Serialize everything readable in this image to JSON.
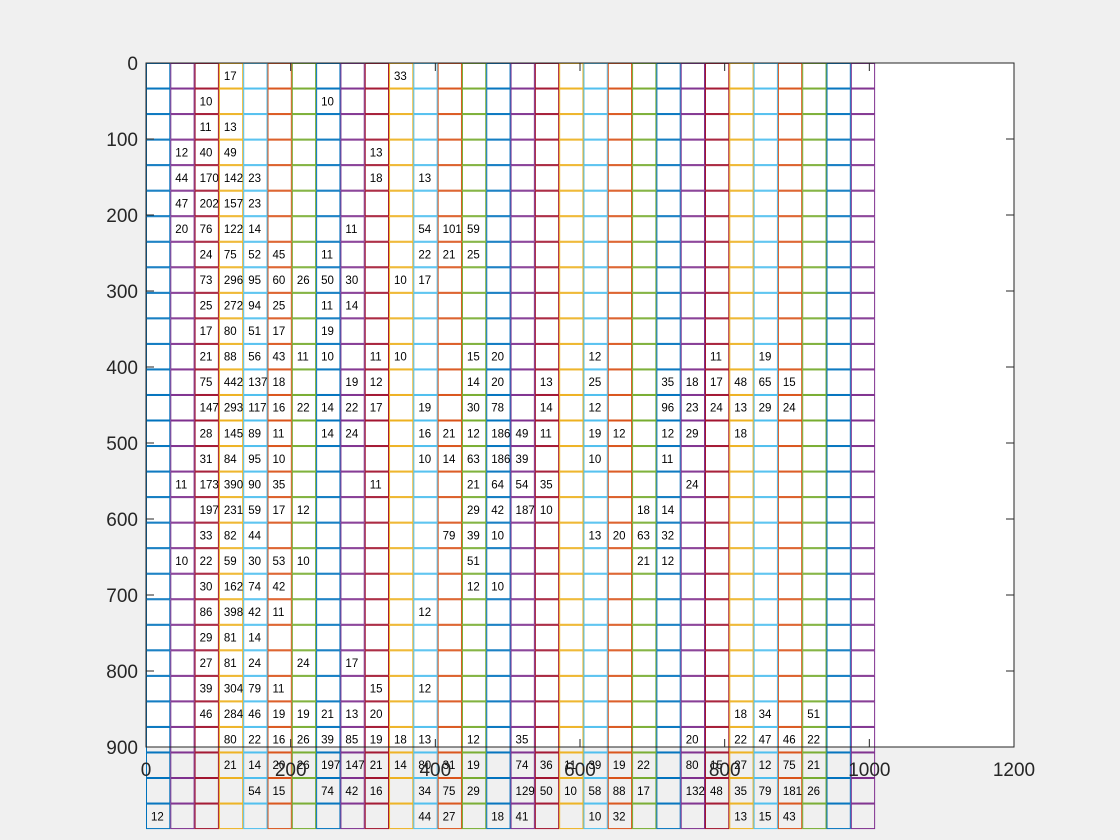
{
  "chart_data": {
    "type": "heatmap",
    "title": "",
    "xlabel": "",
    "ylabel": "",
    "xlim": [
      0,
      1200
    ],
    "ylim": [
      900,
      0
    ],
    "y_reversed": true,
    "x_ticks": [
      0,
      200,
      400,
      600,
      800,
      1000,
      1200
    ],
    "y_ticks": [
      0,
      100,
      200,
      300,
      400,
      500,
      600,
      700,
      800,
      900
    ],
    "cell_size": 33.6,
    "grid_columns": 30,
    "grid_rows": 30,
    "grid_colors": [
      "#0072BD",
      "#D95319",
      "#EDB120",
      "#7E2F8E",
      "#77AC30",
      "#4DBEEE",
      "#A2142F"
    ],
    "grid": false,
    "legend": "none",
    "cell_labels": [
      [
        3,
        0,
        "17"
      ],
      [
        10,
        0,
        "33"
      ],
      [
        2,
        1,
        "10"
      ],
      [
        7,
        1,
        "10"
      ],
      [
        2,
        2,
        "11"
      ],
      [
        3,
        2,
        "13"
      ],
      [
        1,
        3,
        "12"
      ],
      [
        2,
        3,
        "40"
      ],
      [
        3,
        3,
        "49"
      ],
      [
        9,
        3,
        "13"
      ],
      [
        1,
        4,
        "44"
      ],
      [
        2,
        4,
        "170"
      ],
      [
        3,
        4,
        "142"
      ],
      [
        4,
        4,
        "23"
      ],
      [
        9,
        4,
        "18"
      ],
      [
        11,
        4,
        "13"
      ],
      [
        1,
        5,
        "47"
      ],
      [
        2,
        5,
        "202"
      ],
      [
        3,
        5,
        "157"
      ],
      [
        4,
        5,
        "23"
      ],
      [
        1,
        6,
        "20"
      ],
      [
        2,
        6,
        "76"
      ],
      [
        3,
        6,
        "122"
      ],
      [
        4,
        6,
        "14"
      ],
      [
        8,
        6,
        "11"
      ],
      [
        11,
        6,
        "54"
      ],
      [
        12,
        6,
        "101"
      ],
      [
        13,
        6,
        "59"
      ],
      [
        2,
        7,
        "24"
      ],
      [
        3,
        7,
        "75"
      ],
      [
        4,
        7,
        "52"
      ],
      [
        5,
        7,
        "45"
      ],
      [
        7,
        7,
        "11"
      ],
      [
        11,
        7,
        "22"
      ],
      [
        12,
        7,
        "21"
      ],
      [
        13,
        7,
        "25"
      ],
      [
        2,
        8,
        "73"
      ],
      [
        3,
        8,
        "296"
      ],
      [
        4,
        8,
        "95"
      ],
      [
        5,
        8,
        "60"
      ],
      [
        6,
        8,
        "26"
      ],
      [
        7,
        8,
        "50"
      ],
      [
        8,
        8,
        "30"
      ],
      [
        10,
        8,
        "10"
      ],
      [
        11,
        8,
        "17"
      ],
      [
        2,
        9,
        "25"
      ],
      [
        3,
        9,
        "272"
      ],
      [
        4,
        9,
        "94"
      ],
      [
        5,
        9,
        "25"
      ],
      [
        7,
        9,
        "11"
      ],
      [
        8,
        9,
        "14"
      ],
      [
        2,
        10,
        "17"
      ],
      [
        3,
        10,
        "80"
      ],
      [
        4,
        10,
        "51"
      ],
      [
        5,
        10,
        "17"
      ],
      [
        7,
        10,
        "19"
      ],
      [
        2,
        11,
        "21"
      ],
      [
        3,
        11,
        "88"
      ],
      [
        4,
        11,
        "56"
      ],
      [
        5,
        11,
        "43"
      ],
      [
        6,
        11,
        "11"
      ],
      [
        7,
        11,
        "10"
      ],
      [
        9,
        11,
        "11"
      ],
      [
        10,
        11,
        "10"
      ],
      [
        13,
        11,
        "15"
      ],
      [
        14,
        11,
        "20"
      ],
      [
        18,
        11,
        "12"
      ],
      [
        23,
        11,
        "11"
      ],
      [
        25,
        11,
        "19"
      ],
      [
        2,
        12,
        "75"
      ],
      [
        3,
        12,
        "442"
      ],
      [
        4,
        12,
        "137"
      ],
      [
        5,
        12,
        "18"
      ],
      [
        8,
        12,
        "19"
      ],
      [
        9,
        12,
        "12"
      ],
      [
        13,
        12,
        "14"
      ],
      [
        14,
        12,
        "20"
      ],
      [
        16,
        12,
        "13"
      ],
      [
        18,
        12,
        "25"
      ],
      [
        21,
        12,
        "35"
      ],
      [
        22,
        12,
        "18"
      ],
      [
        23,
        12,
        "17"
      ],
      [
        24,
        12,
        "48"
      ],
      [
        25,
        12,
        "65"
      ],
      [
        26,
        12,
        "15"
      ],
      [
        2,
        13,
        "147"
      ],
      [
        3,
        13,
        "293"
      ],
      [
        4,
        13,
        "117"
      ],
      [
        5,
        13,
        "16"
      ],
      [
        6,
        13,
        "22"
      ],
      [
        7,
        13,
        "14"
      ],
      [
        8,
        13,
        "22"
      ],
      [
        9,
        13,
        "17"
      ],
      [
        11,
        13,
        "19"
      ],
      [
        13,
        13,
        "30"
      ],
      [
        14,
        13,
        "78"
      ],
      [
        16,
        13,
        "14"
      ],
      [
        18,
        13,
        "12"
      ],
      [
        21,
        13,
        "96"
      ],
      [
        22,
        13,
        "23"
      ],
      [
        23,
        13,
        "24"
      ],
      [
        24,
        13,
        "13"
      ],
      [
        25,
        13,
        "29"
      ],
      [
        26,
        13,
        "24"
      ],
      [
        2,
        14,
        "28"
      ],
      [
        3,
        14,
        "145"
      ],
      [
        4,
        14,
        "89"
      ],
      [
        5,
        14,
        "11"
      ],
      [
        7,
        14,
        "14"
      ],
      [
        8,
        14,
        "24"
      ],
      [
        11,
        14,
        "16"
      ],
      [
        12,
        14,
        "21"
      ],
      [
        13,
        14,
        "12"
      ],
      [
        14,
        14,
        "186"
      ],
      [
        15,
        14,
        "49"
      ],
      [
        16,
        14,
        "11"
      ],
      [
        18,
        14,
        "19"
      ],
      [
        19,
        14,
        "12"
      ],
      [
        21,
        14,
        "12"
      ],
      [
        22,
        14,
        "29"
      ],
      [
        24,
        14,
        "18"
      ],
      [
        2,
        15,
        "31"
      ],
      [
        3,
        15,
        "84"
      ],
      [
        4,
        15,
        "95"
      ],
      [
        5,
        15,
        "10"
      ],
      [
        11,
        15,
        "10"
      ],
      [
        12,
        15,
        "14"
      ],
      [
        13,
        15,
        "63"
      ],
      [
        14,
        15,
        "186"
      ],
      [
        15,
        15,
        "39"
      ],
      [
        18,
        15,
        "10"
      ],
      [
        21,
        15,
        "11"
      ],
      [
        1,
        16,
        "11"
      ],
      [
        2,
        16,
        "173"
      ],
      [
        3,
        16,
        "390"
      ],
      [
        4,
        16,
        "90"
      ],
      [
        5,
        16,
        "35"
      ],
      [
        9,
        16,
        "11"
      ],
      [
        13,
        16,
        "21"
      ],
      [
        14,
        16,
        "64"
      ],
      [
        15,
        16,
        "54"
      ],
      [
        16,
        16,
        "35"
      ],
      [
        22,
        16,
        "24"
      ],
      [
        2,
        17,
        "197"
      ],
      [
        3,
        17,
        "231"
      ],
      [
        4,
        17,
        "59"
      ],
      [
        5,
        17,
        "17"
      ],
      [
        6,
        17,
        "12"
      ],
      [
        13,
        17,
        "29"
      ],
      [
        14,
        17,
        "42"
      ],
      [
        15,
        17,
        "187"
      ],
      [
        16,
        17,
        "10"
      ],
      [
        20,
        17,
        "18"
      ],
      [
        21,
        17,
        "14"
      ],
      [
        2,
        18,
        "33"
      ],
      [
        3,
        18,
        "82"
      ],
      [
        4,
        18,
        "44"
      ],
      [
        12,
        18,
        "79"
      ],
      [
        13,
        18,
        "39"
      ],
      [
        14,
        18,
        "10"
      ],
      [
        18,
        18,
        "13"
      ],
      [
        19,
        18,
        "20"
      ],
      [
        20,
        18,
        "63"
      ],
      [
        21,
        18,
        "32"
      ],
      [
        1,
        19,
        "10"
      ],
      [
        2,
        19,
        "22"
      ],
      [
        3,
        19,
        "59"
      ],
      [
        4,
        19,
        "30"
      ],
      [
        5,
        19,
        "53"
      ],
      [
        6,
        19,
        "10"
      ],
      [
        13,
        19,
        "51"
      ],
      [
        20,
        19,
        "21"
      ],
      [
        21,
        19,
        "12"
      ],
      [
        2,
        20,
        "30"
      ],
      [
        3,
        20,
        "162"
      ],
      [
        4,
        20,
        "74"
      ],
      [
        5,
        20,
        "42"
      ],
      [
        13,
        20,
        "12"
      ],
      [
        14,
        20,
        "10"
      ],
      [
        2,
        21,
        "86"
      ],
      [
        3,
        21,
        "398"
      ],
      [
        4,
        21,
        "42"
      ],
      [
        5,
        21,
        "11"
      ],
      [
        11,
        21,
        "12"
      ],
      [
        2,
        22,
        "29"
      ],
      [
        3,
        22,
        "81"
      ],
      [
        4,
        22,
        "14"
      ],
      [
        2,
        23,
        "27"
      ],
      [
        3,
        23,
        "81"
      ],
      [
        4,
        23,
        "24"
      ],
      [
        6,
        23,
        "24"
      ],
      [
        8,
        23,
        "17"
      ],
      [
        2,
        24,
        "39"
      ],
      [
        3,
        24,
        "304"
      ],
      [
        4,
        24,
        "79"
      ],
      [
        5,
        24,
        "11"
      ],
      [
        9,
        24,
        "15"
      ],
      [
        11,
        24,
        "12"
      ],
      [
        2,
        25,
        "46"
      ],
      [
        3,
        25,
        "284"
      ],
      [
        4,
        25,
        "46"
      ],
      [
        5,
        25,
        "19"
      ],
      [
        6,
        25,
        "19"
      ],
      [
        7,
        25,
        "21"
      ],
      [
        8,
        25,
        "13"
      ],
      [
        9,
        25,
        "20"
      ],
      [
        24,
        25,
        "18"
      ],
      [
        25,
        25,
        "34"
      ],
      [
        27,
        25,
        "51"
      ],
      [
        3,
        26,
        "80"
      ],
      [
        4,
        26,
        "22"
      ],
      [
        5,
        26,
        "16"
      ],
      [
        6,
        26,
        "26"
      ],
      [
        7,
        26,
        "39"
      ],
      [
        8,
        26,
        "85"
      ],
      [
        9,
        26,
        "19"
      ],
      [
        10,
        26,
        "18"
      ],
      [
        11,
        26,
        "13"
      ],
      [
        13,
        26,
        "12"
      ],
      [
        15,
        26,
        "35"
      ],
      [
        22,
        26,
        "20"
      ],
      [
        24,
        26,
        "22"
      ],
      [
        25,
        26,
        "47"
      ],
      [
        26,
        26,
        "46"
      ],
      [
        27,
        26,
        "22"
      ],
      [
        3,
        27,
        "21"
      ],
      [
        4,
        27,
        "14"
      ],
      [
        5,
        27,
        "20"
      ],
      [
        6,
        27,
        "26"
      ],
      [
        7,
        27,
        "197"
      ],
      [
        8,
        27,
        "147"
      ],
      [
        9,
        27,
        "21"
      ],
      [
        10,
        27,
        "14"
      ],
      [
        11,
        27,
        "80"
      ],
      [
        12,
        27,
        "31"
      ],
      [
        13,
        27,
        "19"
      ],
      [
        15,
        27,
        "74"
      ],
      [
        16,
        27,
        "36"
      ],
      [
        17,
        27,
        "11"
      ],
      [
        18,
        27,
        "39"
      ],
      [
        19,
        27,
        "19"
      ],
      [
        20,
        27,
        "22"
      ],
      [
        22,
        27,
        "80"
      ],
      [
        23,
        27,
        "15"
      ],
      [
        24,
        27,
        "27"
      ],
      [
        25,
        27,
        "12"
      ],
      [
        26,
        27,
        "75"
      ],
      [
        27,
        27,
        "21"
      ],
      [
        4,
        28,
        "54"
      ],
      [
        5,
        28,
        "15"
      ],
      [
        7,
        28,
        "74"
      ],
      [
        8,
        28,
        "42"
      ],
      [
        9,
        28,
        "16"
      ],
      [
        11,
        28,
        "34"
      ],
      [
        12,
        28,
        "75"
      ],
      [
        13,
        28,
        "29"
      ],
      [
        15,
        28,
        "129"
      ],
      [
        16,
        28,
        "50"
      ],
      [
        17,
        28,
        "10"
      ],
      [
        18,
        28,
        "58"
      ],
      [
        19,
        28,
        "88"
      ],
      [
        20,
        28,
        "17"
      ],
      [
        22,
        28,
        "132"
      ],
      [
        23,
        28,
        "48"
      ],
      [
        24,
        28,
        "35"
      ],
      [
        25,
        28,
        "79"
      ],
      [
        26,
        28,
        "181"
      ],
      [
        27,
        28,
        "26"
      ],
      [
        0,
        29,
        "12"
      ],
      [
        11,
        29,
        "44"
      ],
      [
        12,
        29,
        "27"
      ],
      [
        14,
        29,
        "18"
      ],
      [
        15,
        29,
        "41"
      ],
      [
        18,
        29,
        "10"
      ],
      [
        19,
        29,
        "32"
      ],
      [
        24,
        29,
        "13"
      ],
      [
        25,
        29,
        "15"
      ],
      [
        26,
        29,
        "43"
      ]
    ]
  }
}
